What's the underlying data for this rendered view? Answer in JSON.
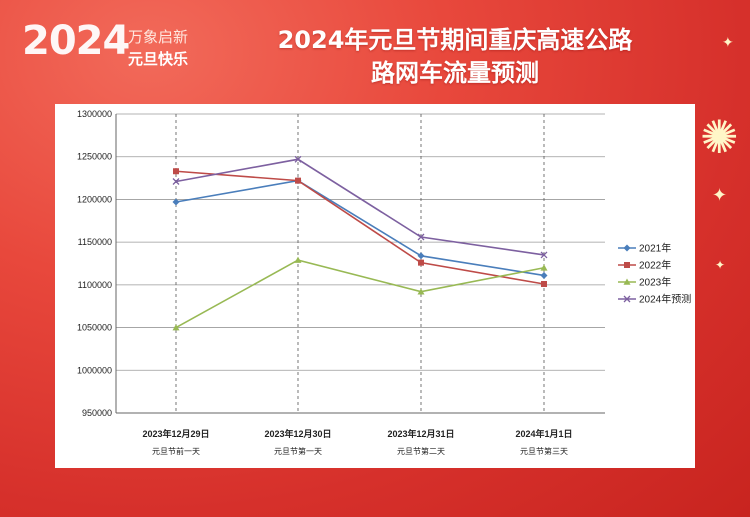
{
  "banner": {
    "logo_year": "2024",
    "logo_line1": "万象启新",
    "logo_line2": "元旦快乐",
    "title_line1": "2024年元旦节期间重庆高速公路",
    "title_line2": "路网车流量预测"
  },
  "colors": {
    "background": "#d6302b",
    "series": [
      "#4a7ebb",
      "#be4b48",
      "#98b954",
      "#7d60a0"
    ]
  },
  "chart_data": {
    "type": "line",
    "title": "",
    "xlabel": "",
    "ylabel": "",
    "ylim": [
      950000,
      1300000
    ],
    "yticks": [
      "950000",
      "1000000",
      "1050000",
      "1100000",
      "1150000",
      "1200000",
      "1250000",
      "1300000"
    ],
    "categories": [
      "2023年12月29日",
      "2023年12月30日",
      "2023年12月31日",
      "2024年1月1日"
    ],
    "category_sublabels": [
      "元旦节前一天",
      "元旦节第一天",
      "元旦节第二天",
      "元旦节第三天"
    ],
    "legend_position": "right",
    "grid": "vertical dashed at categories",
    "series": [
      {
        "name": "2021年",
        "marker": "diamond",
        "values": [
          1197000,
          1222000,
          1134000,
          1111000
        ]
      },
      {
        "name": "2022年",
        "marker": "square",
        "values": [
          1233000,
          1222000,
          1126000,
          1101000
        ]
      },
      {
        "name": "2023年",
        "marker": "triangle",
        "values": [
          1050000,
          1129000,
          1092000,
          1120000
        ]
      },
      {
        "name": "2024年预测",
        "marker": "x",
        "values": [
          1221000,
          1247000,
          1156000,
          1135000
        ]
      }
    ]
  }
}
